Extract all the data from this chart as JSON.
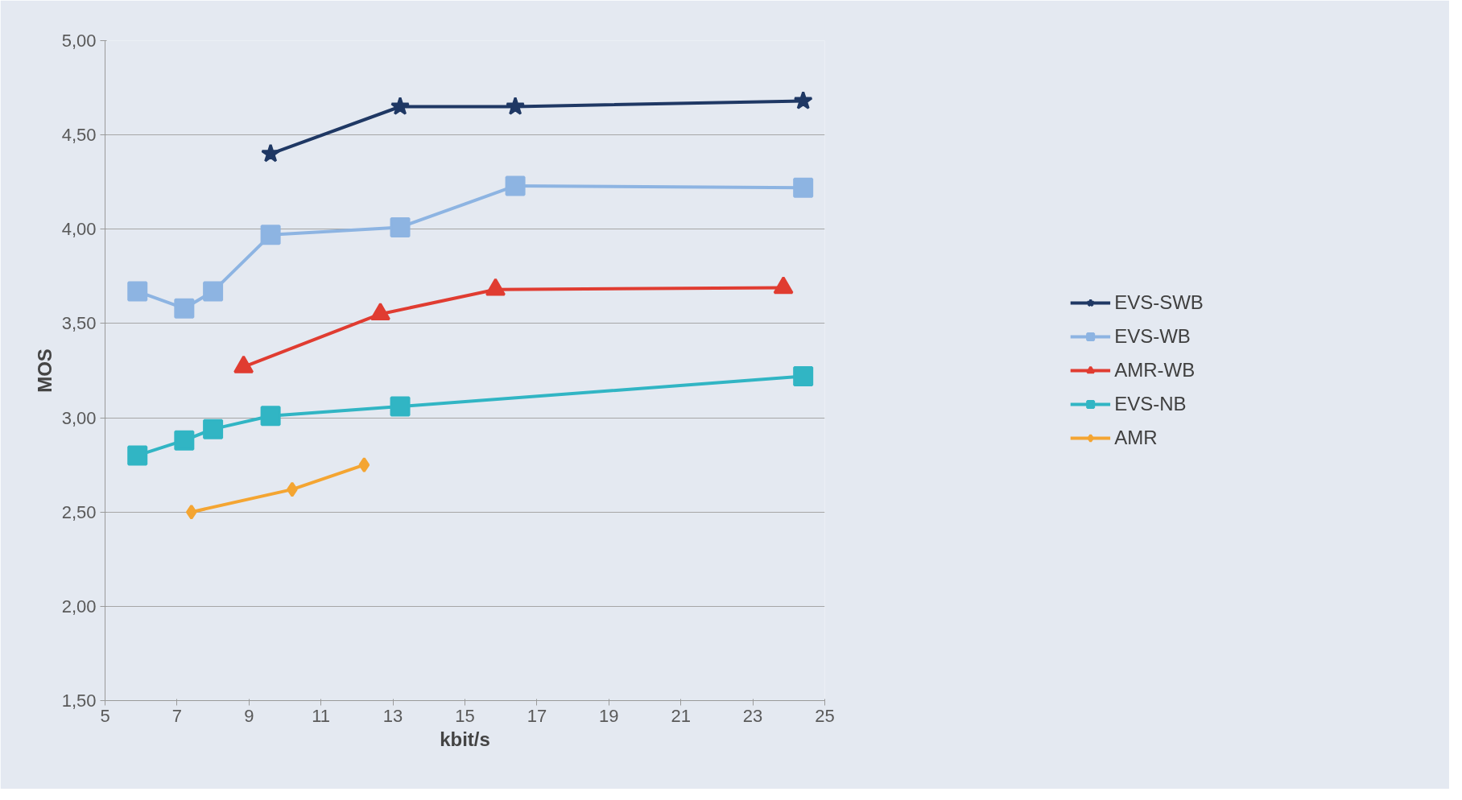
{
  "chart_data": {
    "type": "line",
    "xlabel": "kbit/s",
    "ylabel": "MOS",
    "xlim": [
      5,
      25
    ],
    "xticks": [
      5,
      7,
      9,
      11,
      13,
      15,
      17,
      19,
      21,
      23,
      25
    ],
    "ylim": [
      1.5,
      5.0
    ],
    "yticks": [
      {
        "value": 1.5,
        "label": "1,50"
      },
      {
        "value": 2.0,
        "label": "2,00"
      },
      {
        "value": 2.5,
        "label": "2,50"
      },
      {
        "value": 3.0,
        "label": "3,00"
      },
      {
        "value": 3.5,
        "label": "3,50"
      },
      {
        "value": 4.0,
        "label": "4,00"
      },
      {
        "value": 4.5,
        "label": "4,50"
      },
      {
        "value": 5.0,
        "label": "5,00"
      }
    ],
    "grid": "y",
    "legend": "right",
    "series": [
      {
        "name": "EVS-SWB",
        "color": "#1f3864",
        "marker": "star",
        "x": [
          9.6,
          13.2,
          16.4,
          24.4
        ],
        "values": [
          4.4,
          4.65,
          4.65,
          4.68
        ]
      },
      {
        "name": "EVS-WB",
        "color": "#8db4e2",
        "marker": "square",
        "x": [
          5.9,
          7.2,
          8.0,
          9.6,
          13.2,
          16.4,
          24.4
        ],
        "values": [
          3.67,
          3.58,
          3.67,
          3.97,
          4.01,
          4.23,
          4.22
        ]
      },
      {
        "name": "AMR-WB",
        "color": "#e03c31",
        "marker": "triangle",
        "x": [
          8.85,
          12.65,
          15.85,
          23.85
        ],
        "values": [
          3.27,
          3.55,
          3.68,
          3.69
        ]
      },
      {
        "name": "EVS-NB",
        "color": "#31b5c4",
        "marker": "square",
        "x": [
          5.9,
          7.2,
          8.0,
          9.6,
          13.2,
          24.4
        ],
        "values": [
          2.8,
          2.88,
          2.94,
          3.01,
          3.06,
          3.22
        ]
      },
      {
        "name": "AMR",
        "color": "#f4a532",
        "marker": "diamond",
        "x": [
          7.4,
          10.2,
          12.2
        ],
        "values": [
          2.5,
          2.62,
          2.75
        ]
      }
    ]
  }
}
